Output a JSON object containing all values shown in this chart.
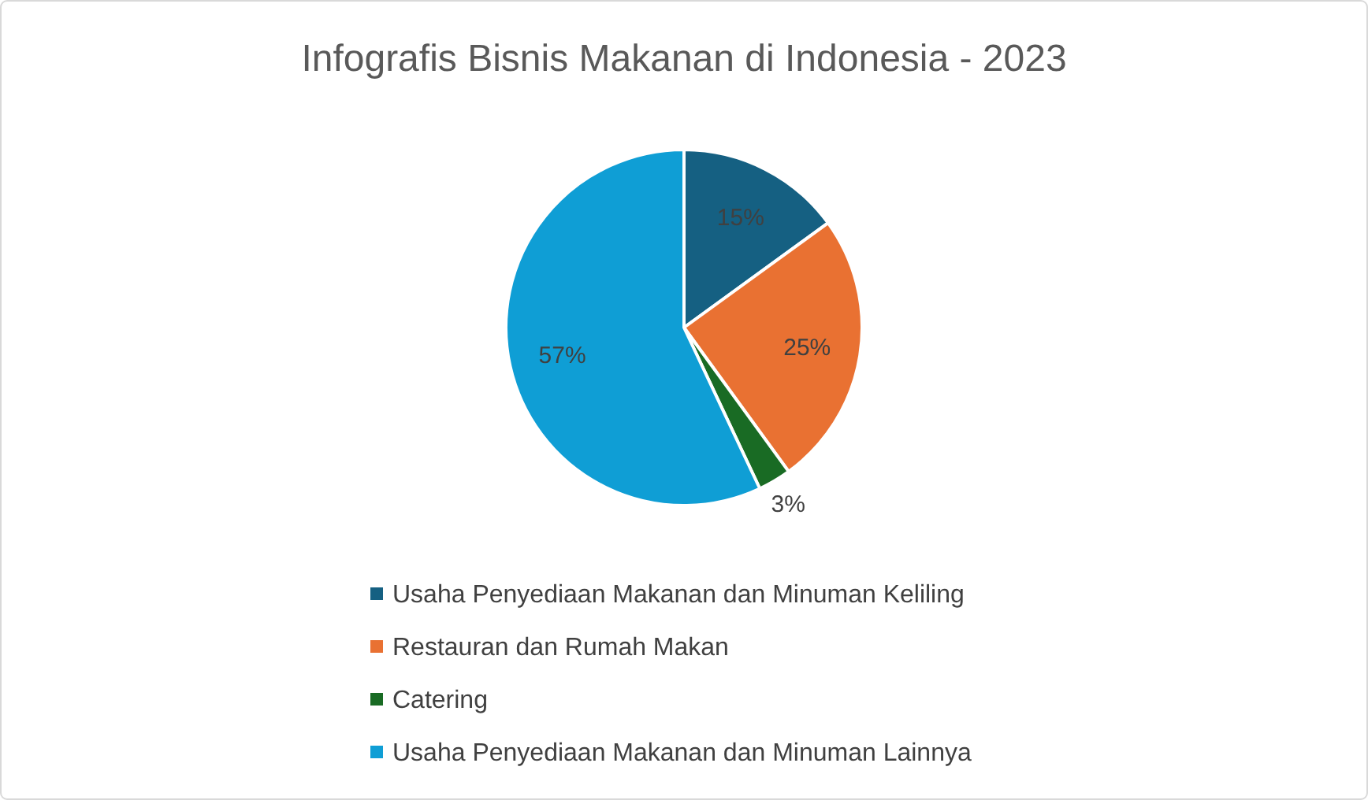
{
  "chart_data": {
    "type": "pie",
    "title": "Infografis Bisnis Makanan di Indonesia - 2023",
    "categories": [
      "Usaha Penyediaan Makanan dan Minuman Keliling",
      "Restauran dan Rumah Makan",
      "Catering",
      "Usaha Penyediaan Makanan dan Minuman Lainnya"
    ],
    "values": [
      15,
      25,
      3,
      57
    ],
    "colors": [
      "#156082",
      "#e97132",
      "#196b24",
      "#0f9ed5"
    ],
    "value_labels": [
      "15%",
      "25%",
      "3%",
      "57%"
    ],
    "legend": "bottom"
  }
}
